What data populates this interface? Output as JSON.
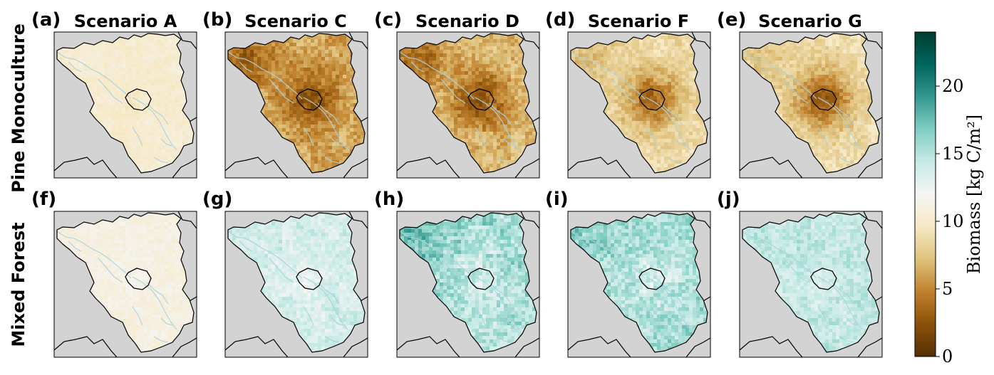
{
  "figure": {
    "columns": [
      "Scenario A",
      "Scenario C",
      "Scenario D",
      "Scenario F",
      "Scenario G"
    ],
    "rows": [
      "Pine Monoculture",
      "Mixed Forest"
    ],
    "panel_letters": [
      "(a)",
      "(b)",
      "(c)",
      "(d)",
      "(e)",
      "(f)",
      "(g)",
      "(h)",
      "(i)",
      "(j)"
    ]
  },
  "colorbar": {
    "label": "Biomass [kg C/m²]",
    "ticks": [
      0,
      5,
      10,
      15,
      20
    ],
    "range": [
      0,
      24
    ],
    "colormap": "BrBG",
    "stops": [
      "#543005",
      "#8c510a",
      "#bf812d",
      "#dfc27d",
      "#f6e8c3",
      "#f5f5f5",
      "#c7eae5",
      "#80cdc1",
      "#35978f",
      "#01665e",
      "#003c30"
    ]
  },
  "chart_data": {
    "type": "heatmap",
    "description_values": "mean biomass per panel (kg C/m²), estimated from colours",
    "panels": [
      {
        "letter": "(a)",
        "row": "Pine Monoculture",
        "column": "Scenario A",
        "mean": 10.3,
        "berlin": 10.0,
        "west_hotspot": 10.3,
        "spread": 0.5
      },
      {
        "letter": "(b)",
        "row": "Pine Monoculture",
        "column": "Scenario C",
        "mean": 6.3,
        "berlin": 2.5,
        "west_hotspot": 3.5,
        "spread": 1.2
      },
      {
        "letter": "(c)",
        "row": "Pine Monoculture",
        "column": "Scenario D",
        "mean": 7.0,
        "berlin": 2.5,
        "west_hotspot": 3.5,
        "spread": 1.2
      },
      {
        "letter": "(d)",
        "row": "Pine Monoculture",
        "column": "Scenario F",
        "mean": 8.8,
        "berlin": 3.5,
        "west_hotspot": 7.0,
        "spread": 1.0
      },
      {
        "letter": "(e)",
        "row": "Pine Monoculture",
        "column": "Scenario G",
        "mean": 8.8,
        "berlin": 3.0,
        "west_hotspot": 7.5,
        "spread": 1.0
      },
      {
        "letter": "(f)",
        "row": "Mixed Forest",
        "column": "Scenario A",
        "mean": 11.0,
        "berlin": 11.3,
        "west_hotspot": 11.0,
        "spread": 0.5
      },
      {
        "letter": "(g)",
        "row": "Mixed Forest",
        "column": "Scenario C",
        "mean": 13.8,
        "berlin": 13.0,
        "west_hotspot": 13.8,
        "spread": 1.0
      },
      {
        "letter": "(h)",
        "row": "Mixed Forest",
        "column": "Scenario D",
        "mean": 15.5,
        "berlin": 14.0,
        "west_hotspot": 17.5,
        "spread": 1.6
      },
      {
        "letter": "(i)",
        "row": "Mixed Forest",
        "column": "Scenario F",
        "mean": 15.3,
        "berlin": 14.0,
        "west_hotspot": 16.5,
        "spread": 1.5
      },
      {
        "letter": "(j)",
        "row": "Mixed Forest",
        "column": "Scenario G",
        "mean": 14.5,
        "berlin": 14.0,
        "west_hotspot": 14.8,
        "spread": 1.0
      }
    ],
    "colors": {
      "background": "#d3d3d3",
      "rivers": "#aad3df",
      "border": "#000000"
    }
  }
}
